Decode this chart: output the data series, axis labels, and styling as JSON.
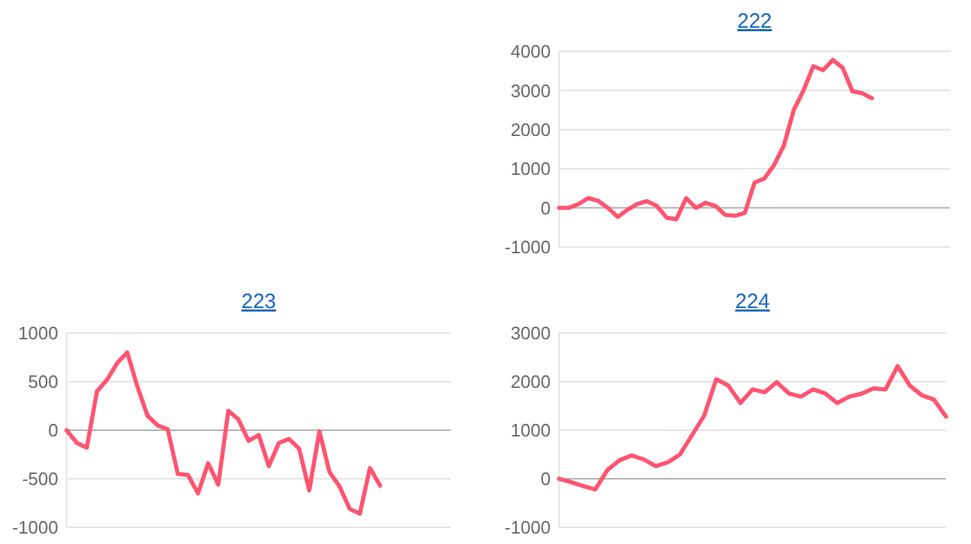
{
  "chart_data": [
    {
      "type": "line",
      "title": "222",
      "categories": [
        null,
        null,
        null,
        null,
        null,
        null,
        null,
        null,
        null,
        null,
        null,
        null,
        null,
        null,
        null,
        null,
        null,
        null,
        null,
        null,
        null,
        null,
        null,
        null,
        null,
        null,
        null,
        null,
        null,
        null,
        null,
        null,
        null,
        null,
        null,
        null,
        null,
        null,
        null,
        null,
        null
      ],
      "series": [
        {
          "color": "#ff5470",
          "values": [
            0,
            0,
            100,
            250,
            180,
            0,
            -230,
            -50,
            100,
            170,
            50,
            -250,
            -290,
            250,
            0,
            130,
            50,
            -180,
            -200,
            -130,
            650,
            750,
            1100,
            1600,
            2500,
            3000,
            3620,
            3520,
            3780,
            3580,
            2980,
            2930,
            2800,
            null,
            null,
            null,
            null,
            null,
            null,
            null,
            null
          ]
        }
      ],
      "ylim": [
        -1000,
        4000
      ],
      "yticks": [
        -1000,
        0,
        1000,
        2000,
        3000,
        4000
      ],
      "grid": "y",
      "marker": "none",
      "line_style": "solid"
    },
    {
      "type": "line",
      "title": "223",
      "categories": [
        null,
        null,
        null,
        null,
        null,
        null,
        null,
        null,
        null,
        null,
        null,
        null,
        null,
        null,
        null,
        null,
        null,
        null,
        null,
        null,
        null,
        null,
        null,
        null,
        null,
        null,
        null,
        null,
        null,
        null,
        null,
        null,
        null,
        null,
        null,
        null,
        null,
        null,
        null
      ],
      "series": [
        {
          "color": "#ff5470",
          "values": [
            0,
            -130,
            -180,
            400,
            520,
            690,
            800,
            450,
            150,
            50,
            10,
            -450,
            -460,
            -650,
            -340,
            -560,
            200,
            110,
            -110,
            -50,
            -370,
            -130,
            -90,
            -190,
            -620,
            -10,
            -430,
            -580,
            -810,
            -860,
            -390,
            -570,
            null,
            null,
            null,
            null,
            null,
            null,
            null
          ]
        }
      ],
      "ylim": [
        -1000,
        1000
      ],
      "yticks": [
        -1000,
        -500,
        0,
        500,
        1000
      ],
      "grid": "y",
      "marker": "none",
      "line_style": "solid"
    },
    {
      "type": "line",
      "title": "224",
      "categories": [
        null,
        null,
        null,
        null,
        null,
        null,
        null,
        null,
        null,
        null,
        null,
        null,
        null,
        null,
        null,
        null,
        null,
        null,
        null,
        null,
        null,
        null,
        null,
        null,
        null,
        null,
        null,
        null,
        null,
        null,
        null,
        null,
        null
      ],
      "series": [
        {
          "color": "#ff5470",
          "values": [
            0,
            -70,
            -150,
            -220,
            180,
            380,
            480,
            400,
            260,
            340,
            500,
            900,
            1300,
            2050,
            1920,
            1560,
            1840,
            1780,
            1990,
            1760,
            1690,
            1840,
            1760,
            1560,
            1690,
            1750,
            1860,
            1840,
            2320,
            1920,
            1720,
            1630,
            1280
          ]
        }
      ],
      "ylim": [
        -1000,
        3000
      ],
      "yticks": [
        -1000,
        0,
        1000,
        2000,
        3000
      ],
      "grid": "y",
      "marker": "none",
      "line_style": "solid"
    }
  ]
}
